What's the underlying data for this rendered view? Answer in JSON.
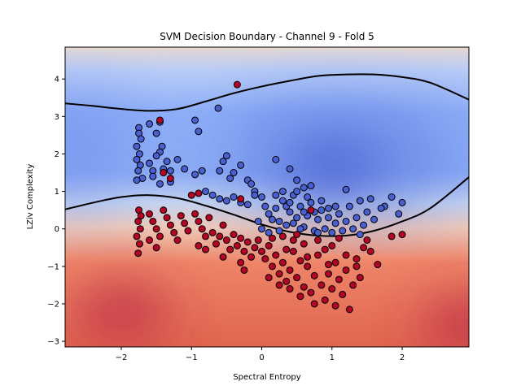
{
  "chart_data": {
    "type": "scatter",
    "title": "SVM Decision Boundary - Channel 9 - Fold 5",
    "xlabel": "Spectral Entropy",
    "ylabel": "LZiv Complexity",
    "xlim": [
      -2.8,
      2.95
    ],
    "ylim": [
      -3.15,
      4.85
    ],
    "xticks": [
      -2,
      -1,
      0,
      1,
      2
    ],
    "yticks": [
      -3,
      -2,
      -1,
      0,
      1,
      2,
      3,
      4
    ],
    "grid": false,
    "legend": "none",
    "background": "decision-function contour, coolwarm colormap (blue = class 0, red = class 1)",
    "boundaries": [
      {
        "name": "upper",
        "x": [
          -2.8,
          -2.4,
          -2.0,
          -1.6,
          -1.2,
          -0.8,
          -0.4,
          0.0,
          0.4,
          0.8,
          1.2,
          1.6,
          2.0,
          2.4,
          2.95
        ],
        "y": [
          3.35,
          3.28,
          3.2,
          3.15,
          3.2,
          3.4,
          3.62,
          3.8,
          3.95,
          4.08,
          4.12,
          4.12,
          4.05,
          3.9,
          3.45
        ]
      },
      {
        "name": "lower",
        "x": [
          -2.8,
          -2.4,
          -2.0,
          -1.6,
          -1.2,
          -0.8,
          -0.4,
          0.0,
          0.4,
          0.8,
          1.2,
          1.6,
          2.0,
          2.4,
          2.95
        ],
        "y": [
          0.52,
          0.7,
          0.85,
          0.9,
          0.82,
          0.62,
          0.38,
          0.12,
          -0.08,
          -0.18,
          -0.18,
          -0.05,
          0.2,
          0.55,
          1.38
        ]
      }
    ],
    "series": [
      {
        "color": "#4a5fd0",
        "points": [
          [
            -1.75,
            2.7
          ],
          [
            -1.75,
            2.55
          ],
          [
            -1.72,
            2.4
          ],
          [
            -1.78,
            2.2
          ],
          [
            -1.74,
            2.0
          ],
          [
            -1.78,
            1.85
          ],
          [
            -1.73,
            1.7
          ],
          [
            -1.76,
            1.55
          ],
          [
            -1.7,
            1.35
          ],
          [
            -1.78,
            1.3
          ],
          [
            -1.6,
            2.8
          ],
          [
            -1.45,
            2.85
          ],
          [
            -1.5,
            2.55
          ],
          [
            -1.42,
            2.2
          ],
          [
            -1.45,
            2.05
          ],
          [
            -1.5,
            1.95
          ],
          [
            -1.35,
            1.8
          ],
          [
            -1.3,
            1.55
          ],
          [
            -1.4,
            1.6
          ],
          [
            -1.6,
            1.75
          ],
          [
            -1.55,
            1.55
          ],
          [
            -1.2,
            1.85
          ],
          [
            -1.1,
            1.6
          ],
          [
            -0.95,
            1.45
          ],
          [
            -0.85,
            1.55
          ],
          [
            -1.45,
            1.2
          ],
          [
            -1.55,
            1.4
          ],
          [
            -1.3,
            1.25
          ],
          [
            -0.95,
            2.9
          ],
          [
            -0.9,
            2.6
          ],
          [
            -0.62,
            3.22
          ],
          [
            -0.55,
            1.8
          ],
          [
            -0.5,
            1.95
          ],
          [
            -0.6,
            1.55
          ],
          [
            -0.45,
            1.35
          ],
          [
            -0.4,
            1.5
          ],
          [
            -0.3,
            1.7
          ],
          [
            -0.2,
            1.3
          ],
          [
            -0.15,
            1.2
          ],
          [
            -0.1,
            1.0
          ],
          [
            -0.8,
            1.0
          ],
          [
            -0.7,
            0.9
          ],
          [
            -0.6,
            0.8
          ],
          [
            -0.5,
            0.75
          ],
          [
            -0.4,
            0.85
          ],
          [
            -0.3,
            0.7
          ],
          [
            -0.2,
            0.65
          ],
          [
            -0.1,
            0.9
          ],
          [
            0.0,
            0.85
          ],
          [
            0.05,
            0.6
          ],
          [
            0.2,
            1.85
          ],
          [
            0.4,
            1.6
          ],
          [
            0.5,
            1.3
          ],
          [
            0.6,
            1.1
          ],
          [
            0.7,
            1.15
          ],
          [
            1.2,
            1.05
          ],
          [
            1.55,
            0.8
          ],
          [
            1.75,
            0.6
          ],
          [
            1.85,
            0.85
          ],
          [
            1.95,
            0.4
          ],
          [
            2.0,
            0.7
          ],
          [
            0.1,
            0.4
          ],
          [
            0.15,
            0.25
          ],
          [
            0.2,
            0.55
          ],
          [
            0.25,
            0.2
          ],
          [
            0.3,
            0.75
          ],
          [
            0.35,
            0.1
          ],
          [
            0.4,
            0.45
          ],
          [
            0.45,
            0.9
          ],
          [
            0.5,
            0.3
          ],
          [
            0.55,
            0.6
          ],
          [
            0.6,
            0.05
          ],
          [
            0.65,
            0.35
          ],
          [
            0.7,
            0.7
          ],
          [
            0.75,
            -0.05
          ],
          [
            0.8,
            0.25
          ],
          [
            0.85,
            0.5
          ],
          [
            0.9,
            0.0
          ],
          [
            0.95,
            0.3
          ],
          [
            1.0,
            -0.1
          ],
          [
            1.05,
            0.15
          ],
          [
            1.1,
            0.4
          ],
          [
            1.15,
            -0.05
          ],
          [
            1.2,
            0.2
          ],
          [
            1.3,
            0.0
          ],
          [
            1.35,
            0.3
          ],
          [
            1.4,
            -0.15
          ],
          [
            1.45,
            0.1
          ],
          [
            1.5,
            0.45
          ],
          [
            1.6,
            0.25
          ],
          [
            1.7,
            0.55
          ],
          [
            0.2,
            0.9
          ],
          [
            0.3,
            1.0
          ],
          [
            0.35,
            0.6
          ],
          [
            0.45,
            0.15
          ],
          [
            0.55,
            0.0
          ],
          [
            0.65,
            0.85
          ],
          [
            0.75,
            0.45
          ],
          [
            0.85,
            0.75
          ],
          [
            0.95,
            0.55
          ],
          [
            1.05,
            0.6
          ],
          [
            -0.05,
            0.2
          ],
          [
            0.0,
            0.0
          ],
          [
            0.1,
            -0.1
          ],
          [
            0.25,
            -0.05
          ],
          [
            0.5,
            1.0
          ],
          [
            0.4,
            0.7
          ],
          [
            0.6,
            0.45
          ],
          [
            0.8,
            -0.1
          ],
          [
            1.25,
            0.6
          ],
          [
            1.4,
            0.75
          ]
        ]
      },
      {
        "color": "#b40426",
        "points": [
          [
            -1.45,
            2.9
          ],
          [
            -0.35,
            3.85
          ],
          [
            -0.3,
            0.8
          ],
          [
            0.7,
            0.5
          ],
          [
            -1.4,
            1.5
          ],
          [
            -1.3,
            1.35
          ],
          [
            -1.0,
            0.9
          ],
          [
            -0.9,
            0.95
          ],
          [
            -1.75,
            0.5
          ],
          [
            -1.72,
            0.35
          ],
          [
            -1.76,
            0.2
          ],
          [
            -1.73,
            0.0
          ],
          [
            -1.78,
            -0.2
          ],
          [
            -1.74,
            -0.4
          ],
          [
            -1.76,
            -0.65
          ],
          [
            -1.6,
            0.4
          ],
          [
            -1.55,
            0.2
          ],
          [
            -1.5,
            0.0
          ],
          [
            -1.45,
            -0.2
          ],
          [
            -1.4,
            0.5
          ],
          [
            -1.35,
            0.3
          ],
          [
            -1.3,
            0.1
          ],
          [
            -1.25,
            -0.1
          ],
          [
            -1.2,
            -0.3
          ],
          [
            -1.15,
            0.35
          ],
          [
            -1.1,
            0.15
          ],
          [
            -1.05,
            -0.05
          ],
          [
            -1.5,
            -0.5
          ],
          [
            -1.6,
            -0.3
          ],
          [
            -0.95,
            0.4
          ],
          [
            -0.9,
            0.2
          ],
          [
            -0.85,
            0.0
          ],
          [
            -0.8,
            -0.2
          ],
          [
            -0.75,
            0.3
          ],
          [
            -0.7,
            -0.1
          ],
          [
            -0.65,
            -0.4
          ],
          [
            -0.6,
            -0.2
          ],
          [
            -0.55,
            0.1
          ],
          [
            -0.5,
            -0.3
          ],
          [
            -0.45,
            -0.55
          ],
          [
            -0.4,
            -0.15
          ],
          [
            -0.35,
            -0.45
          ],
          [
            -0.3,
            -0.25
          ],
          [
            -0.25,
            -0.6
          ],
          [
            -0.2,
            -0.35
          ],
          [
            -0.15,
            -0.75
          ],
          [
            -0.1,
            -0.5
          ],
          [
            -0.05,
            -0.3
          ],
          [
            0.0,
            -0.6
          ],
          [
            0.05,
            -0.8
          ],
          [
            0.1,
            -0.45
          ],
          [
            0.15,
            -1.0
          ],
          [
            0.2,
            -0.7
          ],
          [
            0.25,
            -1.2
          ],
          [
            0.3,
            -0.9
          ],
          [
            0.35,
            -1.4
          ],
          [
            0.4,
            -1.1
          ],
          [
            0.45,
            -0.6
          ],
          [
            0.5,
            -1.3
          ],
          [
            0.55,
            -0.85
          ],
          [
            0.6,
            -1.55
          ],
          [
            0.65,
            -1.0
          ],
          [
            0.7,
            -1.7
          ],
          [
            0.75,
            -1.25
          ],
          [
            0.8,
            -0.7
          ],
          [
            0.85,
            -1.5
          ],
          [
            0.9,
            -1.9
          ],
          [
            0.95,
            -1.2
          ],
          [
            1.0,
            -1.6
          ],
          [
            1.05,
            -0.9
          ],
          [
            1.1,
            -1.35
          ],
          [
            1.15,
            -1.75
          ],
          [
            1.2,
            -1.1
          ],
          [
            1.25,
            -2.15
          ],
          [
            1.3,
            -1.5
          ],
          [
            1.35,
            -0.8
          ],
          [
            1.4,
            -1.3
          ],
          [
            1.45,
            -0.5
          ],
          [
            1.5,
            -0.3
          ],
          [
            1.55,
            -0.6
          ],
          [
            1.65,
            -0.95
          ],
          [
            1.85,
            -0.2
          ],
          [
            2.0,
            -0.15
          ],
          [
            0.3,
            -0.2
          ],
          [
            0.45,
            -0.3
          ],
          [
            0.6,
            -0.4
          ],
          [
            0.8,
            -0.3
          ],
          [
            1.0,
            -0.45
          ],
          [
            -0.8,
            -0.55
          ],
          [
            -0.9,
            -0.45
          ],
          [
            -0.3,
            -0.9
          ],
          [
            -0.25,
            -1.1
          ],
          [
            0.1,
            -1.3
          ],
          [
            0.25,
            -1.5
          ],
          [
            0.4,
            -1.6
          ],
          [
            0.55,
            -1.8
          ],
          [
            0.75,
            -2.0
          ],
          [
            1.05,
            -2.05
          ],
          [
            0.5,
            -0.15
          ],
          [
            0.9,
            -0.55
          ],
          [
            1.2,
            -0.7
          ],
          [
            0.15,
            -0.25
          ],
          [
            -0.55,
            -0.75
          ],
          [
            0.65,
            -0.75
          ],
          [
            0.35,
            -0.55
          ],
          [
            1.1,
            -0.25
          ],
          [
            0.95,
            -0.95
          ],
          [
            1.35,
            -1.0
          ]
        ]
      }
    ]
  }
}
